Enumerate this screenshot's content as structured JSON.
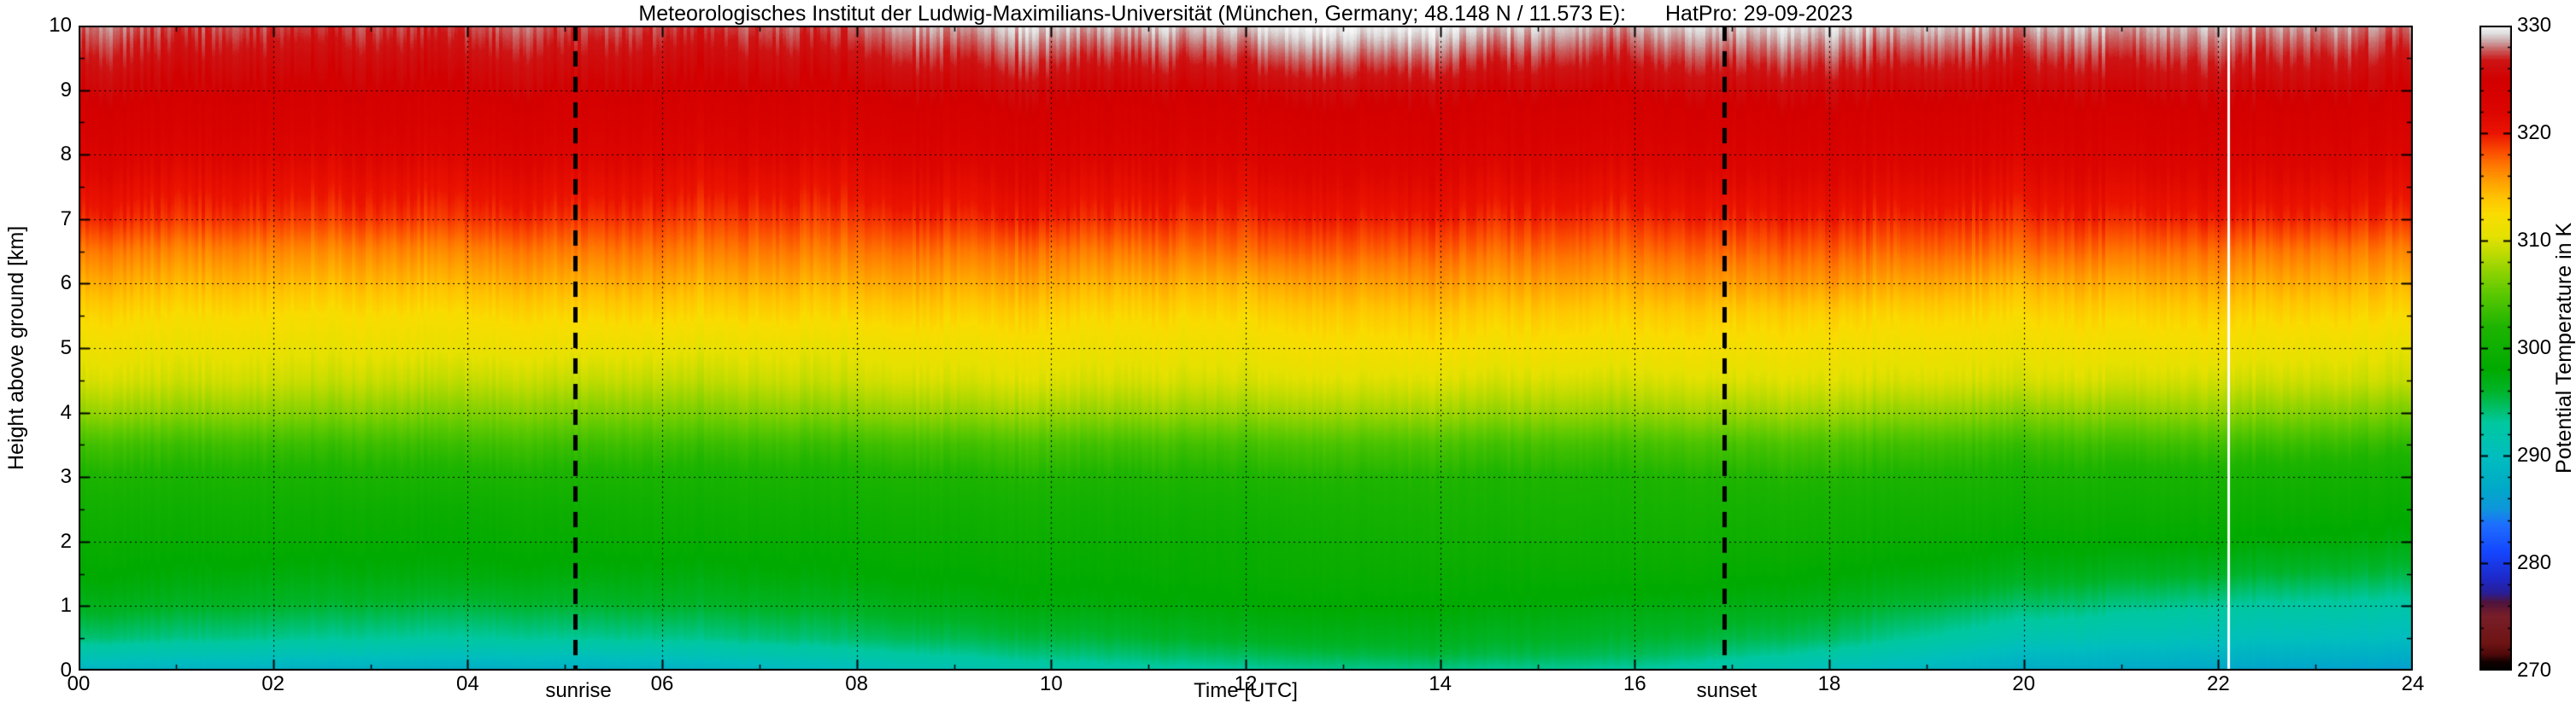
{
  "header": {
    "title_left": "Meteorologisches Institut der Ludwig-Maximilians-Universität (München, Germany; 48.148 N / 11.573 E):",
    "title_right": "HatPro: 29-09-2023"
  },
  "chart_data": {
    "type": "heatmap",
    "title": "Meteorologisches Institut der Ludwig-Maximilians-Universität (München, Germany; 48.148 N / 11.573 E):    HatPro: 29-09-2023",
    "xlabel": "Time [UTC]",
    "ylabel": "Height above ground [km]",
    "colorbar_label": "Potential Temperature in K",
    "xlim": [
      0,
      24
    ],
    "ylim": [
      0,
      10
    ],
    "clim": [
      270,
      330
    ],
    "x_ticks": [
      0,
      2,
      4,
      6,
      8,
      10,
      12,
      14,
      16,
      18,
      20,
      22,
      24
    ],
    "x_ticklabels": [
      "00",
      "02",
      "04",
      "06",
      "08",
      "10",
      "12",
      "14",
      "16",
      "18",
      "20",
      "22",
      "24"
    ],
    "y_ticks": [
      0,
      1,
      2,
      3,
      4,
      5,
      6,
      7,
      8,
      9,
      10
    ],
    "cb_ticks": [
      270,
      280,
      290,
      300,
      310,
      320,
      330
    ],
    "grid": {
      "x_interval_hours": 2,
      "y_interval_km": 1,
      "style": "dashed"
    },
    "annotations": {
      "sunrise_x": 5.1,
      "sunrise_label": "sunrise",
      "sunset_x": 16.92,
      "sunset_label": "sunset",
      "data_gap_line_x": 22.1
    },
    "colormap_stops": [
      [
        270.0,
        "#000000"
      ],
      [
        270.8,
        "#140000"
      ],
      [
        271.5,
        "#500a0a"
      ],
      [
        272.5,
        "#6e1414"
      ],
      [
        275.0,
        "#781e28"
      ],
      [
        276.3,
        "#50143c"
      ],
      [
        277.2,
        "#281e96"
      ],
      [
        278.5,
        "#1e28c8"
      ],
      [
        281.0,
        "#1446ff"
      ],
      [
        283.5,
        "#1e6eff"
      ],
      [
        285.0,
        "#0f96dc"
      ],
      [
        287.0,
        "#00aac8"
      ],
      [
        290.0,
        "#00bebe"
      ],
      [
        293.0,
        "#00c8a0"
      ],
      [
        294.5,
        "#00be64"
      ],
      [
        296.0,
        "#00b428"
      ],
      [
        298.0,
        "#00aa00"
      ],
      [
        302.0,
        "#1eb400"
      ],
      [
        305.0,
        "#5ac800"
      ],
      [
        307.0,
        "#8cd200"
      ],
      [
        309.0,
        "#c3dc00"
      ],
      [
        310.5,
        "#e6e100"
      ],
      [
        312.5,
        "#fadc00"
      ],
      [
        314.0,
        "#ffc300"
      ],
      [
        315.5,
        "#ffa000"
      ],
      [
        317.0,
        "#ff7800"
      ],
      [
        318.5,
        "#fa4600"
      ],
      [
        320.0,
        "#eb1400"
      ],
      [
        322.0,
        "#dc0500"
      ],
      [
        325.0,
        "#d20000"
      ],
      [
        326.8,
        "#cd1414"
      ],
      [
        327.8,
        "#c86060"
      ],
      [
        328.6,
        "#ccaaaa"
      ],
      [
        329.3,
        "#e0dede"
      ],
      [
        330.0,
        "#f8f8f8"
      ]
    ],
    "times": [
      0,
      2,
      4,
      6,
      8,
      10,
      12,
      14,
      16,
      18,
      20,
      22,
      24
    ],
    "heights": [
      0,
      0.25,
      0.5,
      1,
      1.5,
      2,
      2.5,
      3,
      3.5,
      4,
      4.5,
      5,
      5.5,
      6,
      6.5,
      7,
      7.5,
      8,
      9,
      10
    ],
    "theta_K": [
      [
        288.5,
        291.5,
        294,
        296.5,
        298,
        299,
        300,
        301.5,
        303.5,
        307,
        309.5,
        311,
        312.5,
        314.5,
        316.5,
        319,
        320.5,
        322,
        325,
        327.5
      ],
      [
        288,
        291,
        293.5,
        296,
        297.5,
        299,
        300,
        301.5,
        303.5,
        307,
        309.5,
        311,
        312.5,
        314.5,
        316.5,
        319,
        320.5,
        322,
        325,
        327.5
      ],
      [
        287.5,
        290.5,
        293,
        295.5,
        297.5,
        298.5,
        299.5,
        301.5,
        303.5,
        306.5,
        309,
        311,
        312.5,
        314.5,
        316.5,
        319,
        320.5,
        322,
        325,
        327.5
      ],
      [
        288,
        291,
        293.5,
        296,
        297.5,
        299,
        300,
        301.5,
        303.5,
        306.5,
        309,
        311,
        313,
        315,
        317,
        319,
        320.5,
        322,
        325,
        327.5
      ],
      [
        290,
        292.5,
        294.5,
        296.5,
        298,
        299,
        300,
        301.5,
        303.5,
        307,
        309.5,
        311,
        313,
        315,
        317,
        319,
        320.5,
        322,
        325,
        328
      ],
      [
        292,
        294,
        295.5,
        297.5,
        298.5,
        299.5,
        300.5,
        302,
        304,
        307.5,
        310,
        311.5,
        313,
        315,
        317,
        319.5,
        321,
        322.5,
        325.5,
        329
      ],
      [
        293,
        295,
        296.5,
        298,
        299,
        299.5,
        300.5,
        302,
        304,
        307.5,
        310,
        311.5,
        313,
        315,
        317.5,
        319.5,
        321,
        322.5,
        325.5,
        329.5
      ],
      [
        293.5,
        295.5,
        296.5,
        298,
        299,
        300,
        301,
        302,
        304,
        307.5,
        310,
        312,
        313.5,
        315.5,
        317.5,
        319.5,
        321,
        322.5,
        325.5,
        329.5
      ],
      [
        293,
        295,
        296,
        297.5,
        299,
        300,
        301,
        302,
        304,
        307.5,
        310,
        312,
        313.5,
        315.5,
        317.5,
        319.5,
        321,
        322.5,
        325.5,
        329
      ],
      [
        290,
        292.5,
        294.5,
        296.5,
        298,
        299.5,
        300.5,
        302,
        304,
        307.5,
        310,
        311.5,
        313,
        315.5,
        317.5,
        319.5,
        321,
        322.5,
        325.5,
        329
      ],
      [
        287.5,
        289.5,
        291.5,
        294.5,
        297,
        298.5,
        300,
        301.5,
        303.5,
        307,
        310,
        311.5,
        313,
        315,
        317.5,
        319.5,
        321,
        322.5,
        325.5,
        329
      ],
      [
        286.5,
        288.5,
        290.5,
        293,
        296,
        298,
        299.5,
        301,
        303.5,
        307,
        309.5,
        311.5,
        313,
        315,
        317,
        319.5,
        321,
        322.5,
        325.5,
        328.5
      ],
      [
        286,
        288,
        290,
        292.5,
        295.5,
        297.5,
        299,
        300.5,
        303,
        306.5,
        309.5,
        311,
        313,
        315,
        317,
        319.5,
        321,
        322.5,
        325.5,
        328.5
      ]
    ]
  }
}
